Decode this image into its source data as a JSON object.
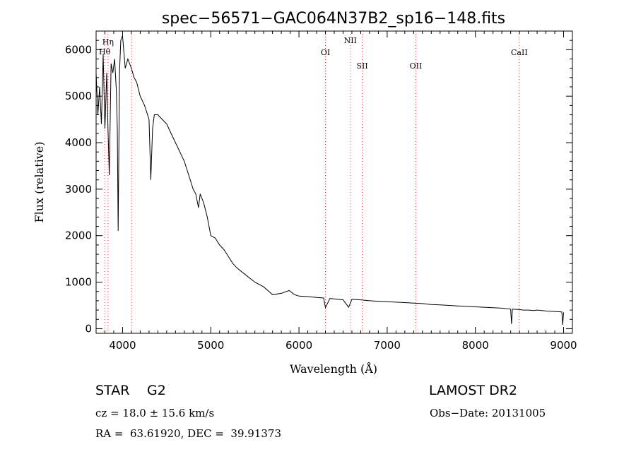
{
  "chart_data": {
    "type": "line",
    "title": "spec−56571−GAC064N37B2_sp16−148.fits",
    "xlabel": "Wavelength (Å)",
    "ylabel": "Flux (relative)",
    "xlim": [
      3700,
      9100
    ],
    "ylim": [
      -100,
      6400
    ],
    "xticks": [
      {
        "v": 4000,
        "label": "4000"
      },
      {
        "v": 5000,
        "label": "5000"
      },
      {
        "v": 6000,
        "label": "6000"
      },
      {
        "v": 7000,
        "label": "7000"
      },
      {
        "v": 8000,
        "label": "8000"
      },
      {
        "v": 9000,
        "label": "9000"
      }
    ],
    "yticks": [
      {
        "v": 0,
        "label": "0"
      },
      {
        "v": 1000,
        "label": "1000"
      },
      {
        "v": 2000,
        "label": "2000"
      },
      {
        "v": 3000,
        "label": "3000"
      },
      {
        "v": 4000,
        "label": "4000"
      },
      {
        "v": 5000,
        "label": "5000"
      },
      {
        "v": 6000,
        "label": "6000"
      }
    ],
    "spectrum": {
      "x": [
        3700,
        3720,
        3740,
        3760,
        3780,
        3800,
        3820,
        3835,
        3850,
        3870,
        3890,
        3910,
        3930,
        3940,
        3950,
        3965,
        3980,
        4000,
        4030,
        4060,
        4100,
        4130,
        4160,
        4200,
        4250,
        4300,
        4320,
        4340,
        4360,
        4400,
        4450,
        4500,
        4550,
        4600,
        4650,
        4700,
        4750,
        4800,
        4830,
        4861,
        4880,
        4920,
        4960,
        5000,
        5050,
        5100,
        5150,
        5200,
        5250,
        5300,
        5400,
        5500,
        5600,
        5700,
        5800,
        5890,
        5950,
        6000,
        6100,
        6200,
        6280,
        6300,
        6350,
        6400,
        6500,
        6563,
        6600,
        6700,
        6800,
        6900,
        7000,
        7100,
        7200,
        7300,
        7400,
        7500,
        7600,
        7700,
        7800,
        7900,
        8000,
        8100,
        8200,
        8300,
        8400,
        8410,
        8420,
        8500,
        8542,
        8600,
        8662,
        8700,
        8800,
        8900,
        8980,
        8990,
        9000
      ],
      "y": [
        5500,
        4600,
        5200,
        4400,
        5900,
        4300,
        5500,
        4300,
        3300,
        5700,
        5500,
        5800,
        5100,
        4300,
        2100,
        5500,
        6200,
        6300,
        5600,
        5800,
        5600,
        5400,
        5300,
        5000,
        4800,
        4500,
        3200,
        4300,
        4600,
        4600,
        4500,
        4400,
        4200,
        4000,
        3800,
        3600,
        3300,
        3000,
        2900,
        2600,
        2900,
        2700,
        2400,
        2000,
        1950,
        1800,
        1700,
        1550,
        1400,
        1300,
        1150,
        1000,
        900,
        730,
        760,
        820,
        730,
        700,
        690,
        670,
        660,
        450,
        650,
        640,
        620,
        460,
        630,
        620,
        600,
        590,
        580,
        570,
        560,
        550,
        540,
        520,
        510,
        500,
        490,
        480,
        470,
        460,
        450,
        440,
        420,
        100,
        420,
        410,
        400,
        400,
        390,
        400,
        380,
        370,
        360,
        80,
        350
      ]
    },
    "line_color": "#000000",
    "marker_color": "#d04040",
    "markers": [
      {
        "label": "Hη",
        "x": 3835
      },
      {
        "label": "Hθ",
        "x": 3797
      },
      {
        "label": "",
        "x": 4102
      },
      {
        "label": "OI",
        "x": 6300
      },
      {
        "label": "NII",
        "x": 6583
      },
      {
        "label": "SII",
        "x": 6717
      },
      {
        "label": "OII",
        "x": 7325
      },
      {
        "label": "CaII",
        "x": 8498
      }
    ]
  },
  "info": {
    "object_class": "STAR",
    "subclass": "G2",
    "survey": "LAMOST DR2",
    "cz": "cz = 18.0 ± 15.6 km/s",
    "obs_date": "Obs−Date: 20131005",
    "coords": "RA =  63.61920, DEC =  39.91373"
  }
}
